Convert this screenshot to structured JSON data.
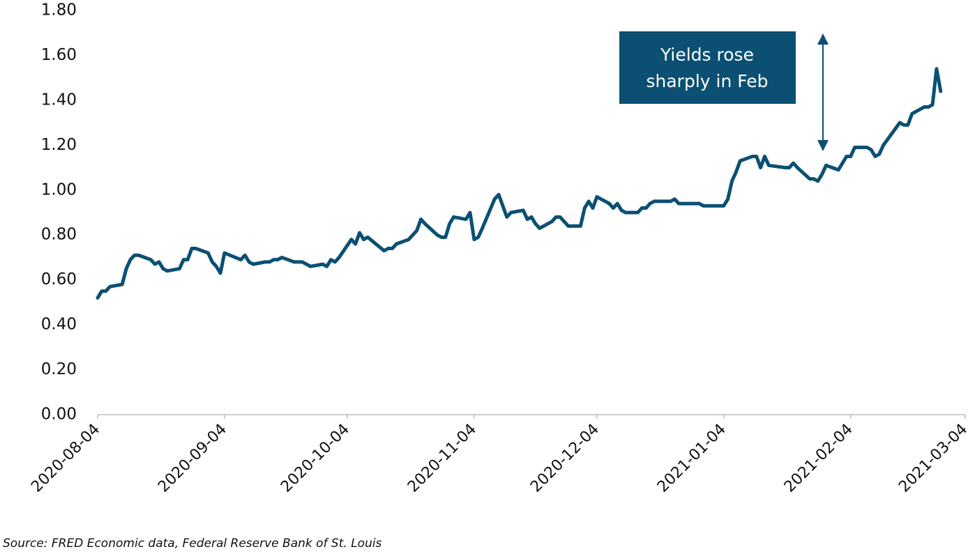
{
  "chart_data": {
    "type": "line",
    "annotation": [
      "Yields rose",
      "sharply in Feb"
    ],
    "source": "Source: FRED Economic data, Federal Reserve Bank of St. Louis",
    "x": [
      "2020-08-04",
      "2020-08-05",
      "2020-08-06",
      "2020-08-07",
      "2020-08-10",
      "2020-08-11",
      "2020-08-12",
      "2020-08-13",
      "2020-08-14",
      "2020-08-17",
      "2020-08-18",
      "2020-08-19",
      "2020-08-20",
      "2020-08-21",
      "2020-08-24",
      "2020-08-25",
      "2020-08-26",
      "2020-08-27",
      "2020-08-28",
      "2020-08-31",
      "2020-09-01",
      "2020-09-02",
      "2020-09-03",
      "2020-09-04",
      "2020-09-08",
      "2020-09-09",
      "2020-09-10",
      "2020-09-11",
      "2020-09-14",
      "2020-09-15",
      "2020-09-16",
      "2020-09-17",
      "2020-09-18",
      "2020-09-21",
      "2020-09-22",
      "2020-09-23",
      "2020-09-24",
      "2020-09-25",
      "2020-09-28",
      "2020-09-29",
      "2020-09-30",
      "2020-10-01",
      "2020-10-02",
      "2020-10-05",
      "2020-10-06",
      "2020-10-07",
      "2020-10-08",
      "2020-10-09",
      "2020-10-13",
      "2020-10-14",
      "2020-10-15",
      "2020-10-16",
      "2020-10-19",
      "2020-10-20",
      "2020-10-21",
      "2020-10-22",
      "2020-10-23",
      "2020-10-26",
      "2020-10-27",
      "2020-10-28",
      "2020-10-29",
      "2020-10-30",
      "2020-11-02",
      "2020-11-03",
      "2020-11-04",
      "2020-11-05",
      "2020-11-06",
      "2020-11-09",
      "2020-11-10",
      "2020-11-12",
      "2020-11-13",
      "2020-11-16",
      "2020-11-17",
      "2020-11-18",
      "2020-11-19",
      "2020-11-20",
      "2020-11-23",
      "2020-11-24",
      "2020-11-25",
      "2020-11-27",
      "2020-11-30",
      "2020-12-01",
      "2020-12-02",
      "2020-12-03",
      "2020-12-04",
      "2020-12-07",
      "2020-12-08",
      "2020-12-09",
      "2020-12-10",
      "2020-12-11",
      "2020-12-14",
      "2020-12-15",
      "2020-12-16",
      "2020-12-17",
      "2020-12-18",
      "2020-12-21",
      "2020-12-22",
      "2020-12-23",
      "2020-12-24",
      "2020-12-28",
      "2020-12-29",
      "2020-12-30",
      "2020-12-31",
      "2021-01-04",
      "2021-01-05",
      "2021-01-06",
      "2021-01-07",
      "2021-01-08",
      "2021-01-11",
      "2021-01-12",
      "2021-01-13",
      "2021-01-14",
      "2021-01-15",
      "2021-01-19",
      "2021-01-20",
      "2021-01-21",
      "2021-01-22",
      "2021-01-25",
      "2021-01-26",
      "2021-01-27",
      "2021-01-28",
      "2021-01-29",
      "2021-02-01",
      "2021-02-02",
      "2021-02-03",
      "2021-02-04",
      "2021-02-05",
      "2021-02-08",
      "2021-02-09",
      "2021-02-10",
      "2021-02-11",
      "2021-02-12",
      "2021-02-16",
      "2021-02-17",
      "2021-02-18",
      "2021-02-19",
      "2021-02-22",
      "2021-02-23",
      "2021-02-24",
      "2021-02-25",
      "2021-02-26"
    ],
    "series": [
      {
        "color": "#0b5073",
        "values": [
          0.52,
          0.55,
          0.55,
          0.57,
          0.58,
          0.65,
          0.69,
          0.71,
          0.71,
          0.69,
          0.67,
          0.68,
          0.65,
          0.64,
          0.65,
          0.69,
          0.69,
          0.74,
          0.74,
          0.72,
          0.68,
          0.66,
          0.63,
          0.72,
          0.69,
          0.71,
          0.68,
          0.67,
          0.68,
          0.68,
          0.69,
          0.69,
          0.7,
          0.68,
          0.68,
          0.68,
          0.67,
          0.66,
          0.67,
          0.66,
          0.69,
          0.68,
          0.7,
          0.78,
          0.76,
          0.81,
          0.78,
          0.79,
          0.73,
          0.74,
          0.74,
          0.76,
          0.78,
          0.8,
          0.82,
          0.87,
          0.85,
          0.8,
          0.79,
          0.79,
          0.85,
          0.88,
          0.87,
          0.9,
          0.78,
          0.79,
          0.83,
          0.96,
          0.98,
          0.88,
          0.9,
          0.91,
          0.87,
          0.88,
          0.85,
          0.83,
          0.86,
          0.88,
          0.88,
          0.84,
          0.84,
          0.92,
          0.95,
          0.92,
          0.97,
          0.94,
          0.92,
          0.94,
          0.91,
          0.9,
          0.9,
          0.92,
          0.92,
          0.94,
          0.95,
          0.95,
          0.95,
          0.96,
          0.94,
          0.94,
          0.94,
          0.93,
          0.93,
          0.93,
          0.96,
          1.04,
          1.08,
          1.13,
          1.15,
          1.15,
          1.1,
          1.15,
          1.11,
          1.1,
          1.1,
          1.12,
          1.1,
          1.05,
          1.05,
          1.04,
          1.07,
          1.11,
          1.09,
          1.12,
          1.15,
          1.15,
          1.19,
          1.19,
          1.18,
          1.15,
          1.16,
          1.2,
          1.3,
          1.29,
          1.29,
          1.34,
          1.37,
          1.37,
          1.38,
          1.54,
          1.44
        ]
      }
    ],
    "xlim": [
      "2020-08-04",
      "2021-03-04"
    ],
    "xticks": [
      "2020-08-04",
      "2020-09-04",
      "2020-10-04",
      "2020-11-04",
      "2020-12-04",
      "2021-01-04",
      "2021-02-04",
      "2021-03-04"
    ],
    "ylim": [
      0,
      1.8
    ],
    "yticks": [
      {
        "value": 0,
        "label": "0.00"
      },
      {
        "value": 0.2,
        "label": "0.20"
      },
      {
        "value": 0.4,
        "label": "0.40"
      },
      {
        "value": 0.6,
        "label": "0.60"
      },
      {
        "value": 0.8,
        "label": "0.80"
      },
      {
        "value": 1.0,
        "label": "1.00"
      },
      {
        "value": 1.2,
        "label": "1.20"
      },
      {
        "value": 1.4,
        "label": "1.40"
      },
      {
        "value": 1.6,
        "label": "1.60"
      },
      {
        "value": 1.8,
        "label": "1.80"
      }
    ],
    "grid": false
  }
}
